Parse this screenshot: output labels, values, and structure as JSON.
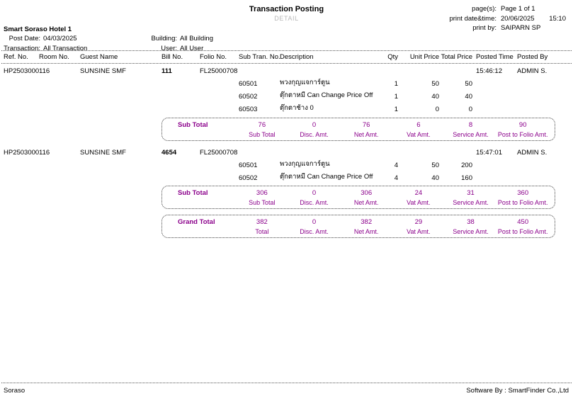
{
  "colors": {
    "accent": "#8B008B",
    "muted": "#B8B8B8"
  },
  "report": {
    "title": "Transaction Posting",
    "subtitle": "DETAIL",
    "meta": {
      "pages_label": "page(s):",
      "pages_value": "Page 1 of 1",
      "print_datetime_label": "print date&time:",
      "print_date": "20/06/2025",
      "print_time": "15:10",
      "print_by_label": "print by:",
      "print_by_value": "SAIPARN SP"
    },
    "hotel_name": "Smart Soraso Hotel 1",
    "filters": {
      "post_date_label": "Post Date:",
      "post_date_value": "04/03/2025",
      "building_label": "Building:",
      "building_value": "All Building",
      "transaction_label": "Transaction:",
      "transaction_value": "All Transaction",
      "user_label": "User:",
      "user_value": "All User"
    }
  },
  "table": {
    "columns": {
      "ref_no": "Ref. No.",
      "room_no": "Room No.",
      "guest_name": "Guest Name",
      "bill_no": "Bill No.",
      "folio_no": "Folio No.",
      "sub_tran_no": "Sub Tran. No.",
      "description": "Description",
      "qty": "Qty",
      "unit_price": "Unit Price",
      "total_price": "Total Price",
      "posted_time": "Posted Time",
      "posted_by": "Posted By"
    },
    "subtotal_columns": [
      "Sub Total",
      "Disc. Amt.",
      "Net Amt.",
      "Vat Amt.",
      "Service Amt.",
      "Post to Folio Amt."
    ],
    "groups": [
      {
        "ref_no": "HP25030007",
        "room_no": "116",
        "guest_name": "SUNSINE SMF",
        "bill_no": "111",
        "folio_no": "FL25000708",
        "posted_time": "15:46:12",
        "posted_by": "ADMIN S.",
        "lines": [
          {
            "sub_tran_no": "60501",
            "description": "พวงกุญแจการ์ตูน",
            "qty": "1",
            "unit_price": "50",
            "total_price": "50"
          },
          {
            "sub_tran_no": "60502",
            "description": "ตุ๊กตาหมี Can Change Price Off",
            "qty": "1",
            "unit_price": "40",
            "total_price": "40"
          },
          {
            "sub_tran_no": "60503",
            "description": "ตุ๊กตาช้าง 0",
            "qty": "1",
            "unit_price": "0",
            "total_price": "0"
          }
        ],
        "subtotal": {
          "label": "Sub Total",
          "values": [
            "76",
            "0",
            "76",
            "6",
            "8",
            "90"
          ]
        }
      },
      {
        "ref_no": "HP25030008",
        "room_no": "116",
        "guest_name": "SUNSINE SMF",
        "bill_no": "4654",
        "folio_no": "FL25000708",
        "posted_time": "15:47:01",
        "posted_by": "ADMIN S.",
        "lines": [
          {
            "sub_tran_no": "60501",
            "description": "พวงกุญแจการ์ตูน",
            "qty": "4",
            "unit_price": "50",
            "total_price": "200"
          },
          {
            "sub_tran_no": "60502",
            "description": "ตุ๊กตาหมี Can Change Price Off",
            "qty": "4",
            "unit_price": "40",
            "total_price": "160"
          }
        ],
        "subtotal": {
          "label": "Sub Total",
          "values": [
            "306",
            "0",
            "306",
            "24",
            "31",
            "360"
          ]
        }
      }
    ],
    "grand_total": {
      "label": "Grand Total",
      "columns": [
        "Total",
        "Disc. Amt.",
        "Net Amt.",
        "Vat Amt.",
        "Service Amt.",
        "Post to Folio Amt."
      ],
      "values": [
        "382",
        "0",
        "382",
        "29",
        "38",
        "450"
      ]
    }
  },
  "footer": {
    "left": "Soraso",
    "right": "Software By : SmartFinder Co.,Ltd"
  }
}
